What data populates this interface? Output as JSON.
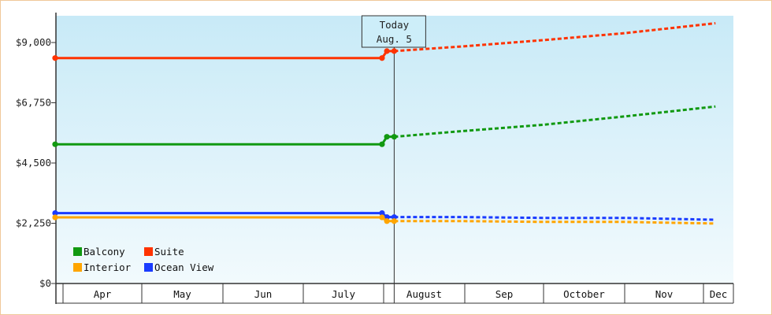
{
  "chart_data": {
    "type": "line",
    "title": "",
    "xlabel": "",
    "ylabel": "",
    "ylim": [
      0,
      10000
    ],
    "y_ticks": [
      {
        "value": 0,
        "label": "$0"
      },
      {
        "value": 2250,
        "label": "$2,250"
      },
      {
        "value": 4500,
        "label": "$4,500"
      },
      {
        "value": 6750,
        "label": "$6,750"
      },
      {
        "value": 9000,
        "label": "$9,000"
      }
    ],
    "months": [
      "Apr",
      "May",
      "Jun",
      "July",
      "August",
      "Sep",
      "October",
      "Nov",
      "Dec"
    ],
    "x_domain": [
      0,
      8.4
    ],
    "today": {
      "label_line1": "Today",
      "label_line2": "Aug. 5",
      "x": 4.13
    },
    "grid": false,
    "legend_position": "bottom-left",
    "series": [
      {
        "name": "Suite",
        "color": "#ff3300",
        "history": [
          [
            -0.1,
            8420
          ],
          [
            3.98,
            8420
          ],
          [
            4.04,
            8680
          ],
          [
            4.13,
            8680
          ]
        ],
        "forecast": [
          [
            4.13,
            8680
          ],
          [
            5.0,
            8860
          ],
          [
            6.0,
            9090
          ],
          [
            7.0,
            9350
          ],
          [
            8.4,
            9720
          ]
        ]
      },
      {
        "name": "Balcony",
        "color": "#119911",
        "history": [
          [
            -0.1,
            5200
          ],
          [
            3.98,
            5200
          ],
          [
            4.04,
            5480
          ],
          [
            4.13,
            5480
          ]
        ],
        "forecast": [
          [
            4.13,
            5480
          ],
          [
            5.0,
            5700
          ],
          [
            6.0,
            5930
          ],
          [
            7.0,
            6240
          ],
          [
            8.4,
            6610
          ]
        ]
      },
      {
        "name": "Ocean View",
        "color": "#1a3cff",
        "history": [
          [
            -0.1,
            2630
          ],
          [
            3.98,
            2630
          ],
          [
            4.04,
            2480
          ],
          [
            4.13,
            2480
          ]
        ],
        "forecast": [
          [
            4.13,
            2480
          ],
          [
            5.0,
            2480
          ],
          [
            6.0,
            2450
          ],
          [
            7.0,
            2450
          ],
          [
            8.4,
            2380
          ]
        ]
      },
      {
        "name": "Interior",
        "color": "#ffa500",
        "history": [
          [
            -0.1,
            2470
          ],
          [
            3.98,
            2470
          ],
          [
            4.04,
            2330
          ],
          [
            4.13,
            2330
          ]
        ],
        "forecast": [
          [
            4.13,
            2330
          ],
          [
            5.0,
            2330
          ],
          [
            6.0,
            2300
          ],
          [
            7.0,
            2300
          ],
          [
            8.4,
            2240
          ]
        ]
      }
    ],
    "legend": [
      {
        "name": "Balcony",
        "color": "#119911"
      },
      {
        "name": "Suite",
        "color": "#ff3300"
      },
      {
        "name": "Interior",
        "color": "#ffa500"
      },
      {
        "name": "Ocean View",
        "color": "#1a3cff"
      }
    ],
    "colors": {
      "plot_top": "#c8eaf7",
      "plot_bottom": "#f2fafd",
      "axis": "#333333",
      "frame": "#f0c89a"
    }
  }
}
